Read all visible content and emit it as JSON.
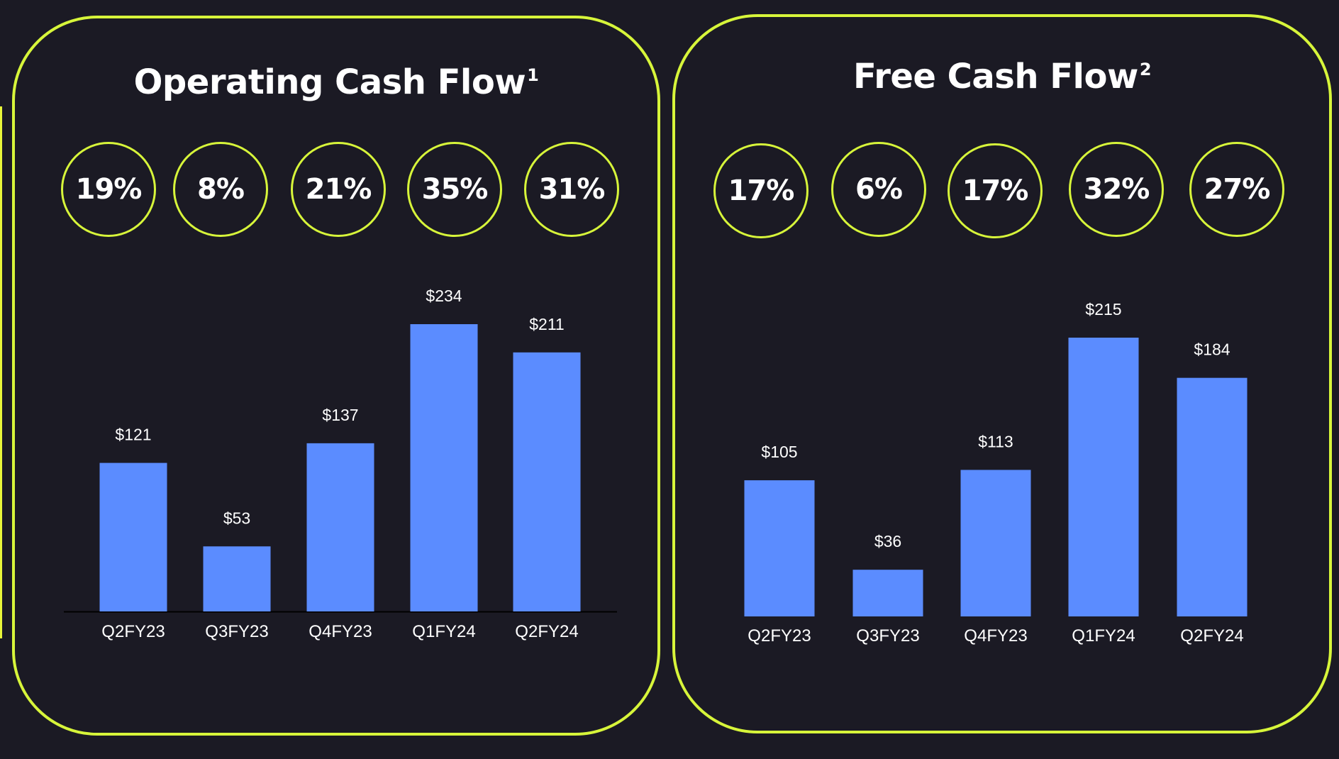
{
  "colors": {
    "background": "#1b1a24",
    "accent": "#d7f53a",
    "bar": "#5b8cff",
    "text": "#ffffff"
  },
  "panels": [
    {
      "title": "Operating Cash Flow",
      "title_sup": "1",
      "margins": [
        "19%",
        "8%",
        "21%",
        "35%",
        "31%"
      ]
    },
    {
      "title": "Free Cash Flow",
      "title_sup": "2",
      "margins": [
        "17%",
        "6%",
        "17%",
        "32%",
        "27%"
      ]
    }
  ],
  "chart_data": [
    {
      "type": "bar",
      "title": "Operating Cash Flow",
      "categories": [
        "Q2FY23",
        "Q3FY23",
        "Q4FY23",
        "Q1FY24",
        "Q2FY24"
      ],
      "values": [
        121,
        53,
        137,
        234,
        211
      ],
      "value_labels": [
        "$121",
        "$53",
        "$137",
        "$234",
        "$211"
      ],
      "xlabel": "",
      "ylabel": "",
      "ylim": [
        0,
        234
      ],
      "grid": false,
      "baseline": true,
      "color": "#5b8cff"
    },
    {
      "type": "bar",
      "title": "Free Cash Flow",
      "categories": [
        "Q2FY23",
        "Q3FY23",
        "Q4FY23",
        "Q1FY24",
        "Q2FY24"
      ],
      "values": [
        105,
        36,
        113,
        215,
        184
      ],
      "value_labels": [
        "$105",
        "$36",
        "$113",
        "$215",
        "$184"
      ],
      "xlabel": "",
      "ylabel": "",
      "ylim": [
        0,
        215
      ],
      "grid": false,
      "baseline": false,
      "color": "#5b8cff"
    }
  ]
}
